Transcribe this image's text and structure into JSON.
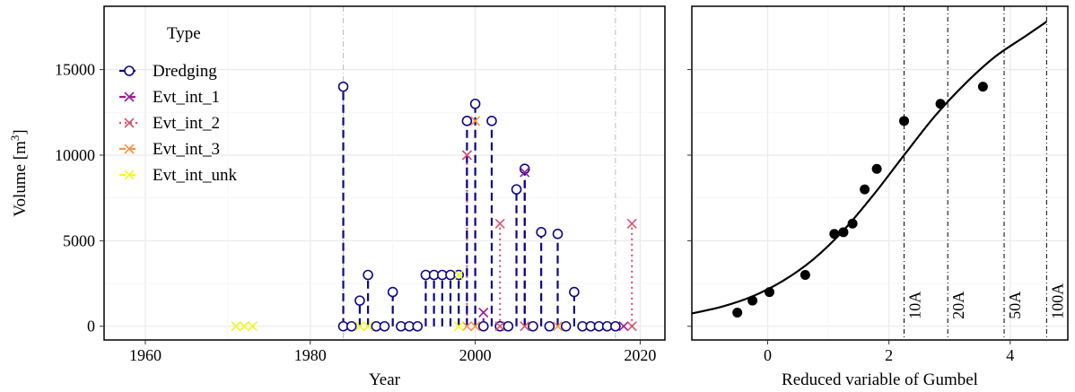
{
  "chart_data": [
    {
      "type": "scatter",
      "subtype": "lollipop",
      "xlabel": "Year",
      "ylabel_base": "Volume [m",
      "ylabel_sup": "3",
      "ylabel_end": "]",
      "xlim": [
        1955,
        2023
      ],
      "ylim": [
        -800,
        18700
      ],
      "xticks": [
        1960,
        1980,
        2000,
        2020
      ],
      "yticks": [
        0,
        5000,
        10000,
        15000
      ],
      "grid": true,
      "vlines": [
        1984,
        2017
      ],
      "legend": {
        "title": "Type",
        "placement": "top-left",
        "entries": [
          {
            "name": "Dredging",
            "color": "#0D0887",
            "marker": "circle",
            "line": "dashed"
          },
          {
            "name": "Evt_int_1",
            "color": "#9C179E",
            "marker": "x",
            "line": "dashed"
          },
          {
            "name": "Evt_int_2",
            "color": "#D5546E",
            "marker": "x",
            "line": "dotted"
          },
          {
            "name": "Evt_int_3",
            "color": "#F89441",
            "marker": "x",
            "line": "dashed"
          },
          {
            "name": "Evt_int_unk",
            "color": "#F0F921",
            "marker": "x",
            "line": "dashed"
          }
        ]
      },
      "series": [
        {
          "name": "Dredging",
          "points": [
            [
              1984,
              0
            ],
            [
              1984,
              14000
            ],
            [
              1985,
              0
            ],
            [
              1986,
              1500
            ],
            [
              1987,
              3000
            ],
            [
              1988,
              0
            ],
            [
              1989,
              0
            ],
            [
              1990,
              2000
            ],
            [
              1991,
              0
            ],
            [
              1992,
              0
            ],
            [
              1993,
              0
            ],
            [
              1994,
              3000
            ],
            [
              1995,
              3000
            ],
            [
              1996,
              3000
            ],
            [
              1997,
              3000
            ],
            [
              1998,
              3000
            ],
            [
              1999,
              12000
            ],
            [
              2000,
              13000
            ],
            [
              2001,
              0
            ],
            [
              2002,
              12000
            ],
            [
              2003,
              0
            ],
            [
              2004,
              0
            ],
            [
              2005,
              8000
            ],
            [
              2006,
              9200
            ],
            [
              2007,
              0
            ],
            [
              2008,
              5500
            ],
            [
              2009,
              0
            ],
            [
              2010,
              5400
            ],
            [
              2011,
              0
            ],
            [
              2012,
              2000
            ],
            [
              2013,
              0
            ],
            [
              2014,
              0
            ],
            [
              2015,
              0
            ],
            [
              2016,
              0
            ],
            [
              2017,
              0
            ]
          ]
        },
        {
          "name": "Evt_int_1",
          "points": [
            [
              1999,
              10000
            ],
            [
              2001,
              800
            ],
            [
              2006,
              9000
            ],
            [
              2018,
              0
            ]
          ]
        },
        {
          "name": "Evt_int_2",
          "points": [
            [
              1999,
              10000
            ],
            [
              2003,
              6000
            ],
            [
              2019,
              6000
            ],
            [
              2019,
              0
            ],
            [
              2006,
              0
            ],
            [
              2003,
              0
            ]
          ]
        },
        {
          "name": "Evt_int_3",
          "points": [
            [
              2000,
              12000
            ],
            [
              2000,
              0
            ],
            [
              2010,
              0
            ],
            [
              1999,
              0
            ]
          ]
        },
        {
          "name": "Evt_int_unk",
          "points": [
            [
              1971,
              0
            ],
            [
              1972,
              0
            ],
            [
              1973,
              0
            ],
            [
              1986,
              0
            ],
            [
              1987,
              0
            ],
            [
              1998,
              3000
            ],
            [
              1998,
              0
            ]
          ]
        }
      ]
    },
    {
      "type": "scatter",
      "xlabel": "Reduced variable of Gumbel",
      "xlim": [
        -1.25,
        4.95
      ],
      "ylim": [
        -800,
        18700
      ],
      "xticks": [
        0,
        2,
        4
      ],
      "grid": true,
      "points": [
        [
          -0.5,
          800
        ],
        [
          -0.25,
          1500
        ],
        [
          0.03,
          2000
        ],
        [
          0.62,
          3000
        ],
        [
          1.1,
          5400
        ],
        [
          1.25,
          5500
        ],
        [
          1.4,
          6000
        ],
        [
          1.6,
          8000
        ],
        [
          1.8,
          9200
        ],
        [
          2.25,
          12000
        ],
        [
          2.85,
          13000
        ],
        [
          3.55,
          14000
        ]
      ],
      "fit_curve": [
        [
          -1.25,
          750
        ],
        [
          -0.75,
          1150
        ],
        [
          -0.25,
          1750
        ],
        [
          0.25,
          2650
        ],
        [
          0.75,
          3900
        ],
        [
          1.25,
          5600
        ],
        [
          1.75,
          7700
        ],
        [
          2.25,
          10000
        ],
        [
          2.75,
          12250
        ],
        [
          3.25,
          14150
        ],
        [
          3.75,
          15750
        ],
        [
          4.25,
          16950
        ],
        [
          4.6,
          17800
        ]
      ],
      "return_periods": [
        {
          "label": "10A",
          "x": 2.25
        },
        {
          "label": "20A",
          "x": 2.97
        },
        {
          "label": "50A",
          "x": 3.9
        },
        {
          "label": "100A",
          "x": 4.6
        }
      ]
    }
  ]
}
